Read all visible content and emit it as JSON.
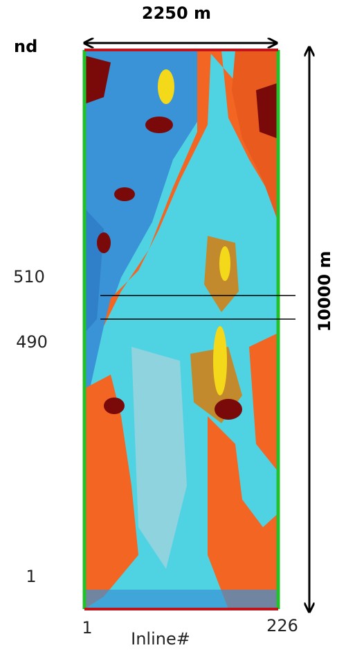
{
  "header": {
    "cut_label": "nd",
    "width_label": "2250 m",
    "height_label": "10000 m"
  },
  "axis": {
    "left_labels": [
      "510",
      "490",
      "1"
    ],
    "bottom_start": "1",
    "bottom_end": "226",
    "bottom_title": "Inline#"
  }
}
